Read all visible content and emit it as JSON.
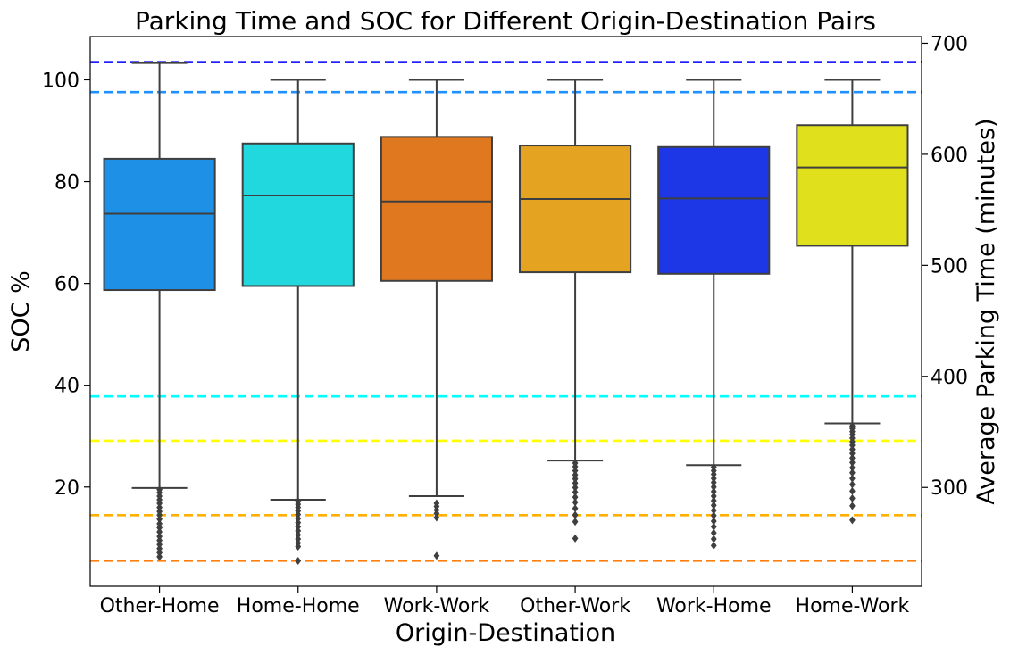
{
  "chart_data": {
    "type": "box",
    "title": "Parking Time and SOC for Different Origin-Destination Pairs",
    "xlabel": "Origin-Destination",
    "ylabel": "SOC %",
    "y2label": "Average Parking Time (minutes)",
    "categories": [
      "Other-Home",
      "Home-Home",
      "Work-Work",
      "Other-Work",
      "Work-Home",
      "Home-Work"
    ],
    "ylim": [
      0.5,
      108.5
    ],
    "y_ticks": [
      20,
      40,
      60,
      80,
      100
    ],
    "y2lim": [
      211,
      706
    ],
    "y2_ticks": [
      300,
      400,
      500,
      600,
      700
    ],
    "boxes": [
      {
        "name": "Other-Home",
        "color": "#1E90E6",
        "min": 19.8,
        "q1": 58.7,
        "median": 73.7,
        "q3": 84.5,
        "max": 103.3,
        "outliers": [
          19.5,
          18.9,
          18.2,
          17.5,
          16.8,
          16.0,
          15.2,
          14.5,
          13.7,
          12.8,
          12.0,
          11.2,
          10.3,
          9.5,
          8.7,
          7.9,
          7.1,
          6.3
        ]
      },
      {
        "name": "Home-Home",
        "color": "#22D8DF",
        "min": 17.5,
        "q1": 59.5,
        "median": 77.3,
        "q3": 87.5,
        "max": 100.0,
        "outliers": [
          17.2,
          16.6,
          16.0,
          15.3,
          14.6,
          13.8,
          13.0,
          12.2,
          11.4,
          10.6,
          9.8,
          9.0,
          8.3,
          5.5
        ]
      },
      {
        "name": "Work-Work",
        "color": "#E0781F",
        "min": 18.2,
        "q1": 60.5,
        "median": 76.1,
        "q3": 88.8,
        "max": 100.0,
        "outliers": [
          16.8,
          16.2,
          15.5,
          14.8,
          14.0,
          6.5
        ]
      },
      {
        "name": "Other-Work",
        "color": "#E4A421",
        "min": 25.2,
        "q1": 62.2,
        "median": 76.6,
        "q3": 87.1,
        "max": 100.0,
        "outliers": [
          24.7,
          24.0,
          23.2,
          22.4,
          21.6,
          20.8,
          19.9,
          19.0,
          18.0,
          17.0,
          15.8,
          14.5,
          13.2,
          9.9
        ]
      },
      {
        "name": "Work-Home",
        "color": "#1E37E6",
        "min": 24.3,
        "q1": 61.9,
        "median": 76.7,
        "q3": 86.8,
        "max": 100.0,
        "outliers": [
          23.9,
          23.2,
          22.5,
          21.7,
          20.9,
          20.0,
          19.1,
          18.2,
          17.3,
          16.4,
          15.4,
          14.4,
          13.3,
          12.2,
          11.0,
          9.8,
          8.5
        ]
      },
      {
        "name": "Home-Work",
        "color": "#E0E01C",
        "min": 32.5,
        "q1": 67.4,
        "median": 82.8,
        "q3": 91.1,
        "max": 100.0,
        "outliers": [
          32.0,
          31.5,
          30.9,
          30.3,
          29.6,
          28.9,
          28.2,
          27.4,
          26.6,
          25.7,
          24.8,
          23.8,
          22.8,
          21.7,
          20.5,
          19.2,
          17.8,
          16.3,
          13.5
        ]
      }
    ],
    "average_parking_time_lines": [
      {
        "category": "Work-Work",
        "color": "#FF7F0E",
        "value": 234
      },
      {
        "category": "Other-Work",
        "color": "#FFB000",
        "value": 275
      },
      {
        "category": "Home-Work",
        "color": "#FFFF00",
        "value": 342
      },
      {
        "category": "Home-Home",
        "color": "#00FFFF",
        "value": 382
      },
      {
        "category": "Other-Home",
        "color": "#1E90FF",
        "value": 656
      },
      {
        "category": "Work-Home",
        "color": "#0000FF",
        "value": 683
      }
    ],
    "grid": false,
    "legend": "none"
  }
}
